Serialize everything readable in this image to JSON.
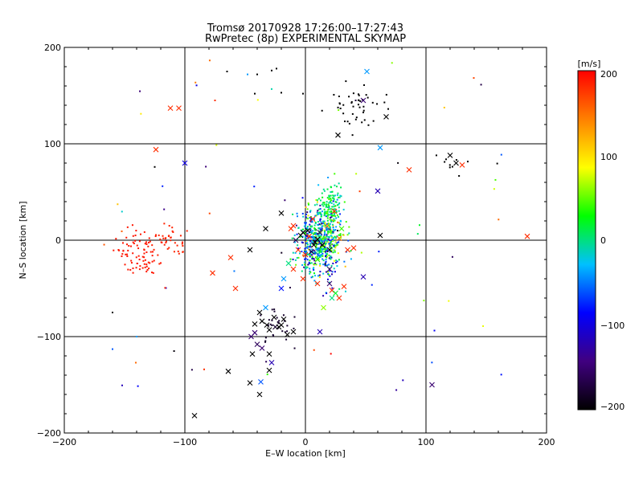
{
  "chart_data": {
    "type": "scatter",
    "title": "Tromsø 20170928 17:26:00–17:27:43",
    "subtitle": "RwPretec (8p) EXPERIMENTAL SKYMAP",
    "xlabel": "E–W location [km]",
    "ylabel": "N–S location [km]",
    "xlim": [
      -200,
      200
    ],
    "ylim": [
      -200,
      200
    ],
    "xticks": [
      "−200",
      "−100",
      "0",
      "100",
      "200"
    ],
    "yticks": [
      "−200",
      "−100",
      "0",
      "100",
      "200"
    ],
    "grid": "major lines at every 100 km",
    "colorbar": {
      "label": "[m/s]",
      "range": [
        -200,
        200
      ],
      "ticks": [
        "200",
        "100",
        "0",
        "−100",
        "−200"
      ],
      "colors": [
        "#000000",
        "#400080",
        "#0000ff",
        "#00c0ff",
        "#00ff00",
        "#ffff00",
        "#ff8000",
        "#ff0000"
      ]
    },
    "markers": {
      "cross": [
        [
          -105,
          137,
          180
        ],
        [
          -112,
          137,
          180
        ],
        [
          -124,
          94,
          180
        ],
        [
          -100,
          80,
          -100
        ],
        [
          -62,
          -18,
          180
        ],
        [
          -77,
          -34,
          180
        ],
        [
          -58,
          -50,
          180
        ],
        [
          -46,
          -10,
          -200
        ],
        [
          -33,
          12,
          -200
        ],
        [
          -20,
          28,
          -200
        ],
        [
          -38,
          -75,
          -200
        ],
        [
          -42,
          -87,
          -200
        ],
        [
          -36,
          -84,
          -200
        ],
        [
          -32,
          -88,
          -200
        ],
        [
          -30,
          -93,
          -200
        ],
        [
          -25,
          -90,
          -180
        ],
        [
          -20,
          -88,
          -200
        ],
        [
          -15,
          -98,
          -200
        ],
        [
          -45,
          -100,
          -150
        ],
        [
          -40,
          -108,
          -160
        ],
        [
          -44,
          -118,
          -200
        ],
        [
          -36,
          -112,
          -150
        ],
        [
          -30,
          -118,
          -200
        ],
        [
          -28,
          -127,
          -120
        ],
        [
          -30,
          -135,
          -200
        ],
        [
          -38,
          -160,
          -200
        ],
        [
          -46,
          -148,
          -200
        ],
        [
          -37,
          -147,
          -60
        ],
        [
          -64,
          -136,
          -200
        ],
        [
          -92,
          -182,
          -200
        ],
        [
          -33,
          -70,
          -40
        ],
        [
          -26,
          -80,
          -200
        ],
        [
          -22,
          -90,
          -200
        ],
        [
          -18,
          -82,
          -200
        ],
        [
          -10,
          -95,
          -200
        ],
        [
          -42,
          -96,
          -150
        ],
        [
          51,
          175,
          -40
        ],
        [
          48,
          145,
          -150
        ],
        [
          67,
          128,
          -200
        ],
        [
          27,
          109,
          -200
        ],
        [
          60,
          51,
          -120
        ],
        [
          62,
          96,
          -40
        ],
        [
          86,
          73,
          180
        ],
        [
          120,
          88,
          -200
        ],
        [
          130,
          78,
          180
        ],
        [
          125,
          80,
          -200
        ],
        [
          62,
          5,
          -200
        ],
        [
          184,
          4,
          180
        ],
        [
          105,
          -150,
          -150
        ],
        [
          40,
          -8,
          180
        ],
        [
          35,
          -10,
          180
        ],
        [
          32,
          -48,
          180
        ],
        [
          28,
          -60,
          180
        ],
        [
          22,
          -60,
          0
        ],
        [
          22,
          -52,
          180
        ],
        [
          15,
          -70,
          60
        ],
        [
          10,
          -45,
          180
        ],
        [
          20,
          -45,
          -150
        ],
        [
          48,
          -38,
          -120
        ],
        [
          -2,
          8,
          -200
        ],
        [
          3,
          4,
          180
        ],
        [
          7,
          -5,
          -200
        ],
        [
          5,
          -12,
          -180
        ],
        [
          10,
          1,
          -200
        ],
        [
          12,
          8,
          -150
        ],
        [
          0,
          -15,
          180
        ],
        [
          -6,
          -10,
          180
        ],
        [
          6,
          22,
          180
        ],
        [
          -10,
          15,
          180
        ],
        [
          18,
          15,
          120
        ],
        [
          24,
          30,
          180
        ],
        [
          30,
          12,
          40
        ],
        [
          -14,
          -24,
          0
        ],
        [
          -10,
          -30,
          180
        ],
        [
          20,
          -30,
          -150
        ],
        [
          10,
          -20,
          30
        ],
        [
          -2,
          -40,
          180
        ],
        [
          25,
          -55,
          20
        ],
        [
          -18,
          -40,
          -40
        ],
        [
          12,
          -95,
          -120
        ],
        [
          -20,
          -50,
          -80
        ],
        [
          20,
          -10,
          -200
        ],
        [
          -4,
          5,
          -200
        ],
        [
          8,
          -2,
          -200
        ],
        [
          14,
          -5,
          -200
        ],
        [
          2,
          10,
          -200
        ],
        [
          -8,
          0,
          -160
        ],
        [
          -12,
          12,
          180
        ],
        [
          28,
          2,
          150
        ]
      ]
    }
  }
}
